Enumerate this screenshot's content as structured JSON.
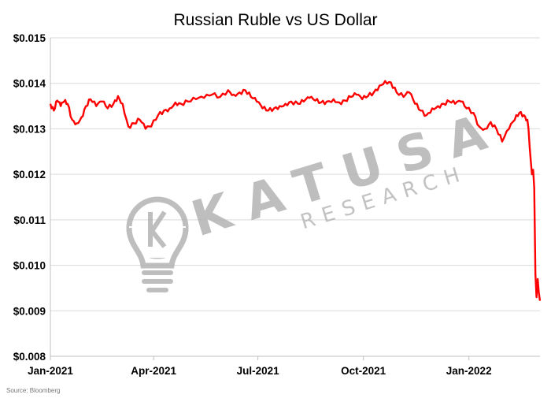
{
  "chart_data": {
    "type": "line",
    "title": "Russian Ruble vs US Dollar",
    "xlabel": "",
    "ylabel": "",
    "ylim": [
      0.008,
      0.015
    ],
    "yticks": [
      0.008,
      0.009,
      0.01,
      0.011,
      0.012,
      0.013,
      0.014,
      0.015
    ],
    "ytick_labels": [
      "$0.008",
      "$0.009",
      "$0.010",
      "$0.011",
      "$0.012",
      "$0.013",
      "$0.014",
      "$0.015"
    ],
    "xlim": [
      "2021-01-01",
      "2022-03-04"
    ],
    "xticks": [
      "2021-01-01",
      "2021-04-01",
      "2021-07-01",
      "2021-10-01",
      "2022-01-01"
    ],
    "xtick_labels": [
      "Jan-2021",
      "Apr-2021",
      "Jul-2021",
      "Oct-2021",
      "Jan-2022"
    ],
    "grid": "horizontal",
    "legend": "none",
    "line_color": "#ff0000",
    "series": [
      {
        "x": [
          "2021-01-01",
          "2021-01-04",
          "2021-01-07",
          "2021-01-10",
          "2021-01-13",
          "2021-01-16",
          "2021-01-20",
          "2021-01-24",
          "2021-01-28",
          "2021-02-01",
          "2021-02-05",
          "2021-02-10",
          "2021-02-15",
          "2021-02-20",
          "2021-02-25",
          "2021-03-01",
          "2021-03-05",
          "2021-03-10",
          "2021-03-15",
          "2021-03-20",
          "2021-03-25",
          "2021-03-30",
          "2021-04-05",
          "2021-04-10",
          "2021-04-15",
          "2021-04-20",
          "2021-04-25",
          "2021-05-01",
          "2021-05-08",
          "2021-05-15",
          "2021-05-22",
          "2021-05-29",
          "2021-06-05",
          "2021-06-10",
          "2021-06-15",
          "2021-06-20",
          "2021-06-25",
          "2021-06-30",
          "2021-07-05",
          "2021-07-10",
          "2021-07-15",
          "2021-07-20",
          "2021-07-25",
          "2021-07-30",
          "2021-08-05",
          "2021-08-10",
          "2021-08-15",
          "2021-08-20",
          "2021-08-25",
          "2021-08-30",
          "2021-09-05",
          "2021-09-10",
          "2021-09-15",
          "2021-09-20",
          "2021-09-25",
          "2021-09-30",
          "2021-10-05",
          "2021-10-10",
          "2021-10-15",
          "2021-10-20",
          "2021-10-25",
          "2021-10-30",
          "2021-11-05",
          "2021-11-10",
          "2021-11-15",
          "2021-11-20",
          "2021-11-25",
          "2021-11-30",
          "2021-12-05",
          "2021-12-10",
          "2021-12-15",
          "2021-12-20",
          "2021-12-25",
          "2021-12-30",
          "2022-01-05",
          "2022-01-10",
          "2022-01-15",
          "2022-01-20",
          "2022-01-25",
          "2022-01-30",
          "2022-02-05",
          "2022-02-10",
          "2022-02-14",
          "2022-02-18",
          "2022-02-21",
          "2022-02-22",
          "2022-02-23",
          "2022-02-24",
          "2022-02-25",
          "2022-02-26",
          "2022-02-27",
          "2022-02-28",
          "2022-03-01",
          "2022-03-02",
          "2022-03-03",
          "2022-03-04"
        ],
        "values": [
          0.01355,
          0.0134,
          0.01362,
          0.0135,
          0.0136,
          0.01355,
          0.0132,
          0.01312,
          0.01325,
          0.0135,
          0.01365,
          0.0135,
          0.0136,
          0.01345,
          0.01355,
          0.01372,
          0.01355,
          0.01305,
          0.01312,
          0.0132,
          0.013,
          0.01305,
          0.0133,
          0.0134,
          0.01345,
          0.01358,
          0.01355,
          0.0136,
          0.01365,
          0.01368,
          0.01375,
          0.0137,
          0.01385,
          0.01375,
          0.0138,
          0.01385,
          0.0137,
          0.0136,
          0.01345,
          0.0134,
          0.01345,
          0.0135,
          0.01355,
          0.0136,
          0.01355,
          0.0136,
          0.01368,
          0.01362,
          0.01358,
          0.0136,
          0.01365,
          0.01358,
          0.01362,
          0.0137,
          0.01375,
          0.01365,
          0.01372,
          0.0138,
          0.01395,
          0.01405,
          0.01402,
          0.0138,
          0.0137,
          0.0138,
          0.01355,
          0.0134,
          0.0133,
          0.01345,
          0.0135,
          0.01355,
          0.0136,
          0.01355,
          0.0136,
          0.01345,
          0.01335,
          0.01305,
          0.013,
          0.01315,
          0.013,
          0.01272,
          0.013,
          0.0132,
          0.01335,
          0.0133,
          0.0132,
          0.013,
          0.0126,
          0.0123,
          0.012,
          0.0121,
          0.0117,
          0.0098,
          0.0093,
          0.0097,
          0.0094,
          0.00922
        ]
      }
    ],
    "source": "Source: Bloomberg"
  },
  "watermark": {
    "brand": "KATUSA",
    "sub": "RESEARCH",
    "icon": "lightbulb-k-icon"
  }
}
